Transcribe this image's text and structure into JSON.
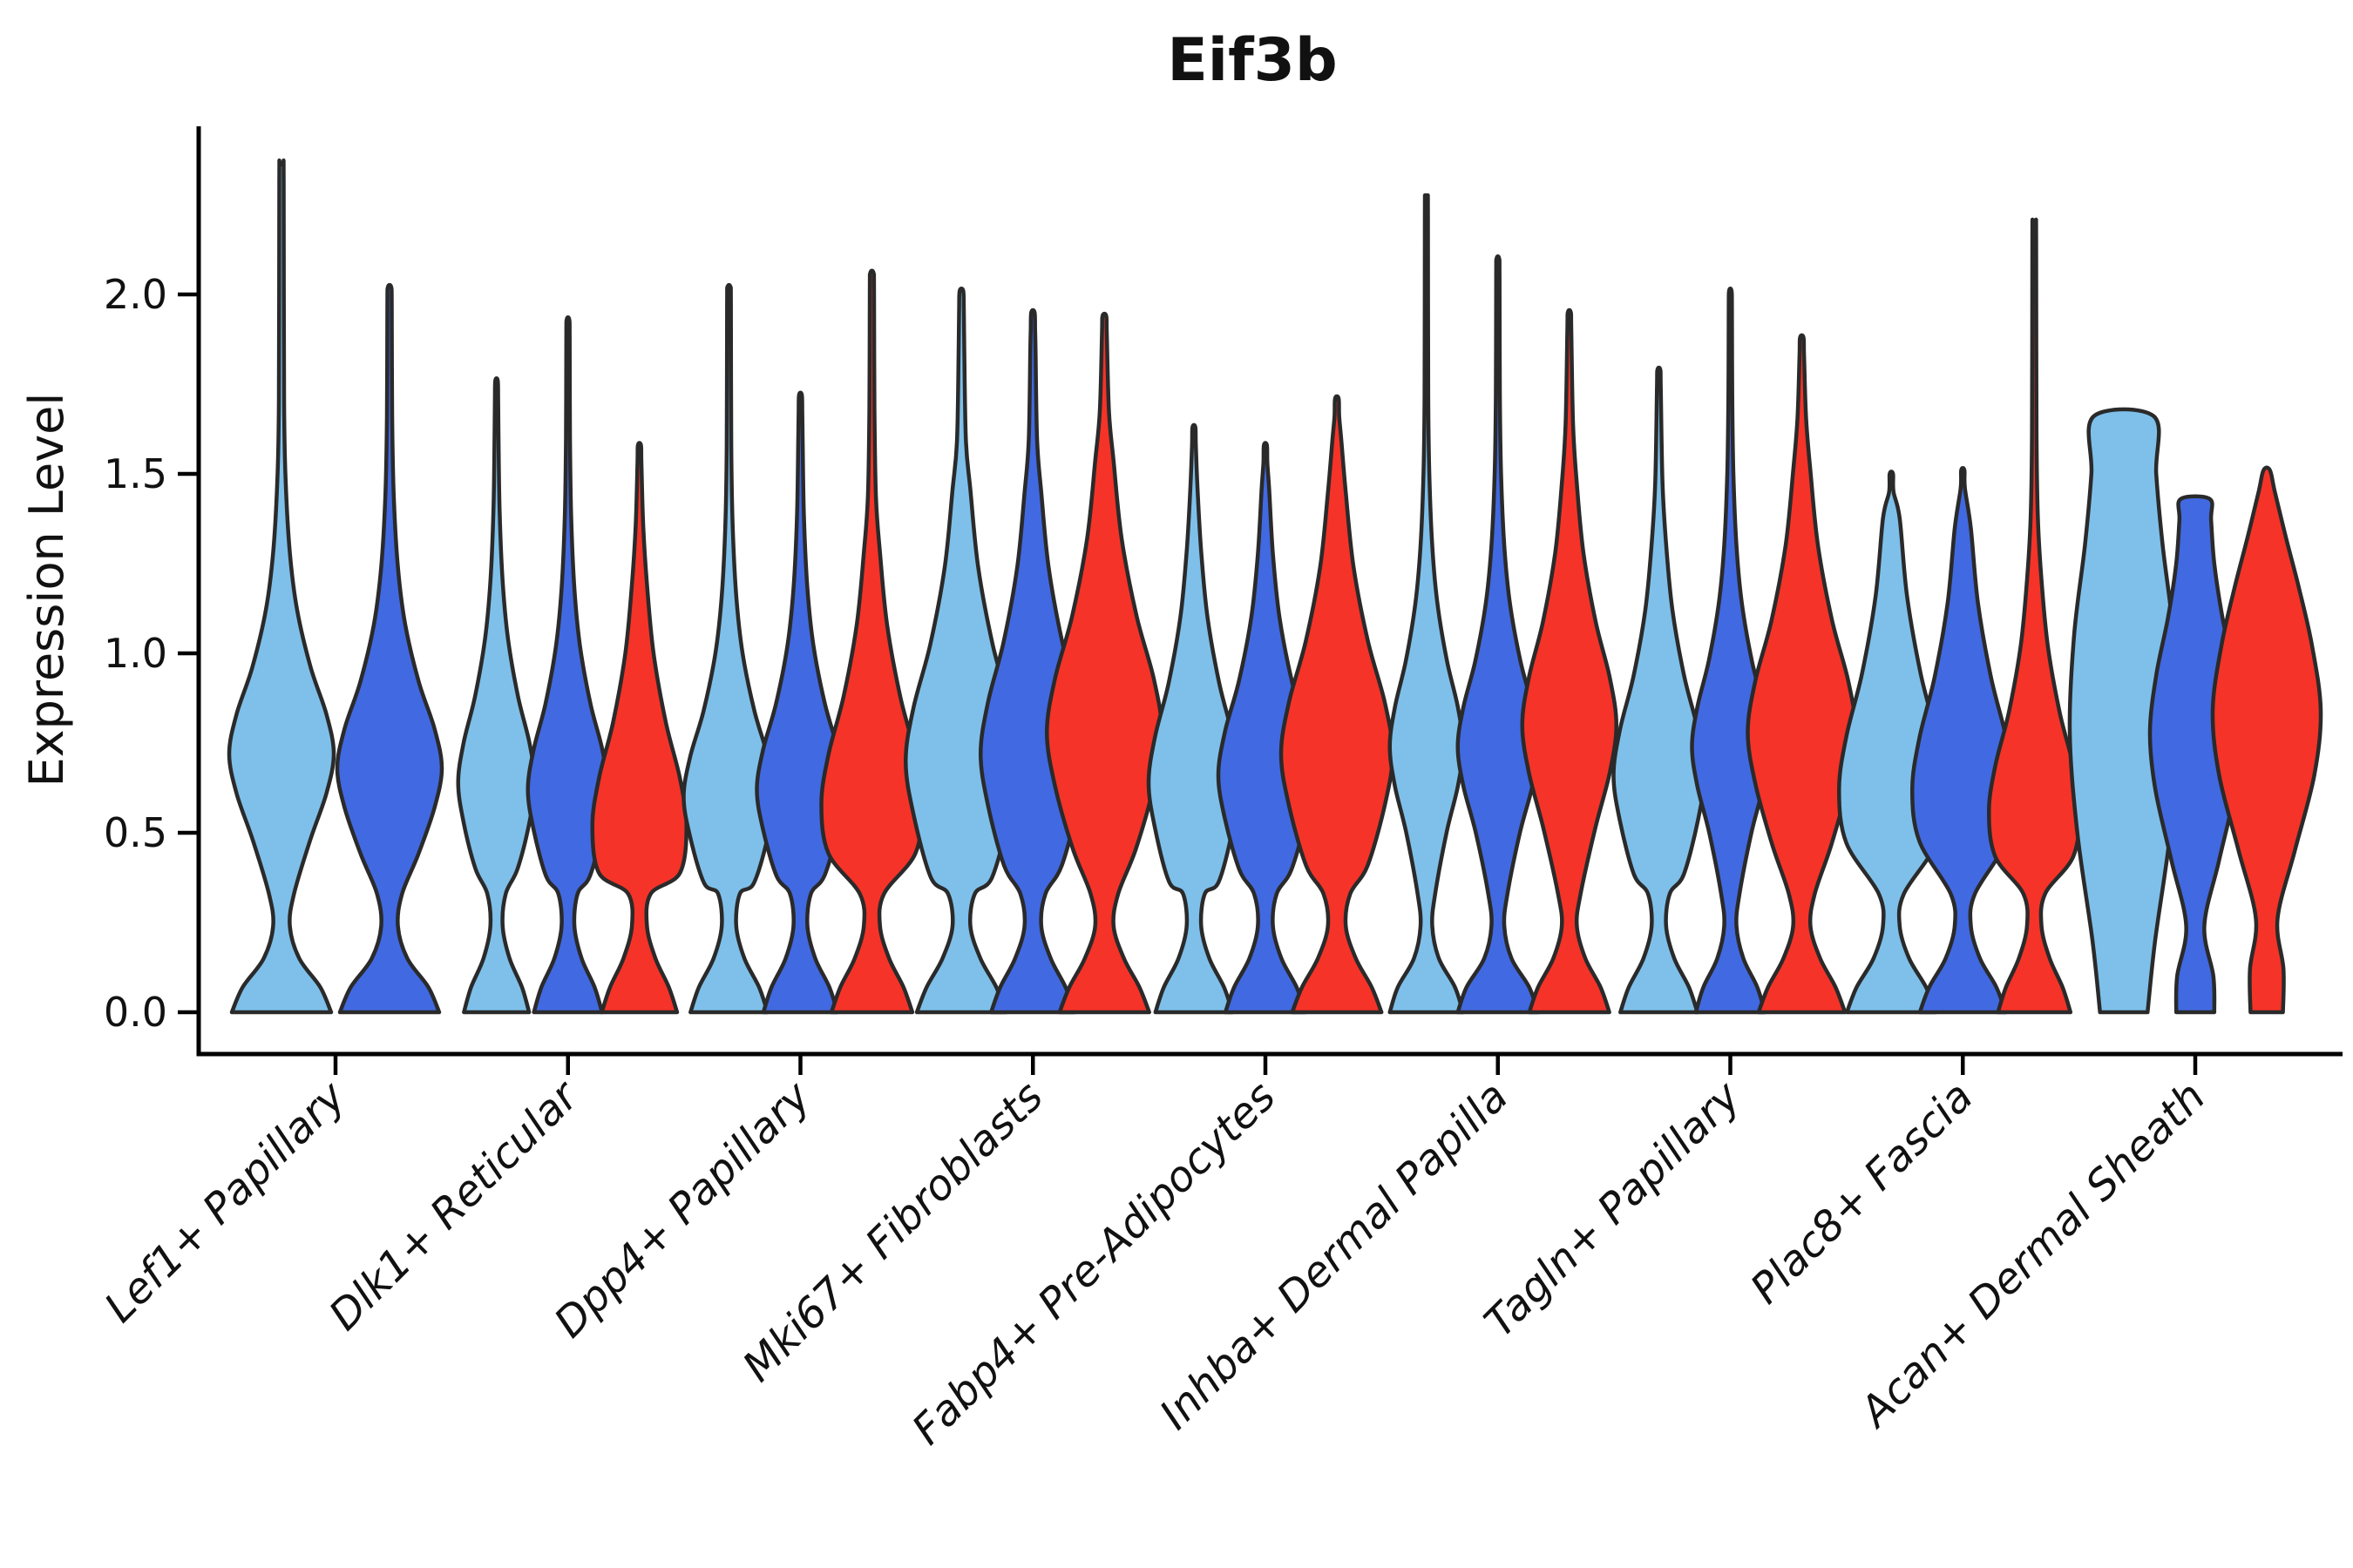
{
  "chart_data": {
    "type": "violin",
    "title": "Eif3b",
    "ylabel": "Expression Level",
    "xlabel": "",
    "ylim": [
      0.0,
      2.47
    ],
    "yticks": [
      0.0,
      0.5,
      1.0,
      1.5,
      2.0
    ],
    "ytick_labels": [
      "0.0",
      "0.5",
      "1.0",
      "1.5",
      "2.0"
    ],
    "grid": false,
    "legend": "none",
    "split_colors": {
      "light_blue": "#7EC0EA",
      "dark_blue": "#4169E1",
      "red": "#F63328"
    },
    "edge_color": "#2a2a2a",
    "groups": [
      {
        "label": "Lef1+ Papillary",
        "violins": [
          {
            "split": "light_blue",
            "max": 2.36,
            "hw": 60,
            "bulge": 0.72,
            "bw": 1.0,
            "base": 0.95
          },
          {
            "split": "dark_blue",
            "max": 2.02,
            "hw": 60,
            "bulge": 0.68,
            "bw": 1.0,
            "base": 0.95
          }
        ]
      },
      {
        "label": "Dlk1+ Reticular",
        "violins": [
          {
            "split": "light_blue",
            "max": 1.76,
            "hw": 44,
            "bulge": 0.64,
            "bw": 1.0,
            "base": 0.85
          },
          {
            "split": "dark_blue",
            "max": 1.93,
            "hw": 46,
            "bulge": 0.62,
            "bw": 1.0,
            "base": 0.85
          },
          {
            "split": "red",
            "max": 1.58,
            "hw": 54,
            "bulge": 0.52,
            "bw": 1.2,
            "base": 0.8
          }
        ]
      },
      {
        "label": "Dpp4+ Papillary",
        "violins": [
          {
            "split": "light_blue",
            "max": 2.02,
            "hw": 52,
            "bulge": 0.6,
            "bw": 1.0,
            "base": 0.85
          },
          {
            "split": "dark_blue",
            "max": 1.72,
            "hw": 50,
            "bulge": 0.62,
            "bw": 1.0,
            "base": 0.85
          },
          {
            "split": "red",
            "max": 2.06,
            "hw": 58,
            "bulge": 0.58,
            "bw": 1.25,
            "base": 0.8
          }
        ]
      },
      {
        "label": "Mki67+ Fibroblasts",
        "violins": [
          {
            "split": "light_blue",
            "max": 2.01,
            "hw": 64,
            "bulge": 0.7,
            "bw": 1.35,
            "base": 0.8
          },
          {
            "split": "dark_blue",
            "max": 1.95,
            "hw": 60,
            "bulge": 0.72,
            "bw": 1.3,
            "base": 0.8
          },
          {
            "split": "red",
            "max": 1.94,
            "hw": 66,
            "bulge": 0.78,
            "bw": 1.35,
            "base": 0.78
          }
        ]
      },
      {
        "label": "Fabp4+ Pre-Adipocytes",
        "violins": [
          {
            "split": "light_blue",
            "max": 1.63,
            "hw": 52,
            "bulge": 0.64,
            "bw": 1.15,
            "base": 0.85
          },
          {
            "split": "dark_blue",
            "max": 1.58,
            "hw": 54,
            "bulge": 0.66,
            "bw": 1.1,
            "base": 0.85
          },
          {
            "split": "red",
            "max": 1.71,
            "hw": 64,
            "bulge": 0.72,
            "bw": 1.3,
            "base": 0.8
          }
        ]
      },
      {
        "label": "Inhba+ Dermal Papilla",
        "violins": [
          {
            "split": "light_blue",
            "max": 2.27,
            "hw": 42,
            "bulge": 0.74,
            "bw": 1.0,
            "base": 1.0
          },
          {
            "split": "dark_blue",
            "max": 2.1,
            "hw": 46,
            "bulge": 0.74,
            "bw": 1.0,
            "base": 1.0
          },
          {
            "split": "red",
            "max": 1.95,
            "hw": 54,
            "bulge": 0.8,
            "bw": 1.2,
            "base": 0.85
          }
        ]
      },
      {
        "label": "Tagln+ Papillary",
        "violins": [
          {
            "split": "light_blue",
            "max": 1.79,
            "hw": 52,
            "bulge": 0.66,
            "bw": 1.15,
            "base": 0.85
          },
          {
            "split": "dark_blue",
            "max": 2.01,
            "hw": 44,
            "bulge": 0.74,
            "bw": 1.0,
            "base": 0.9
          },
          {
            "split": "red",
            "max": 1.88,
            "hw": 62,
            "bulge": 0.78,
            "bw": 1.3,
            "base": 0.8
          }
        ]
      },
      {
        "label": "Plac8+ Fascia",
        "violins": [
          {
            "split": "light_blue",
            "max": 1.5,
            "hw": 60,
            "bulge": 0.62,
            "bw": 1.35,
            "base": 0.85
          },
          {
            "split": "dark_blue",
            "max": 1.51,
            "hw": 58,
            "bulge": 0.62,
            "bw": 1.3,
            "base": 0.85
          },
          {
            "split": "red",
            "max": 2.2,
            "hw": 52,
            "bulge": 0.56,
            "bw": 1.15,
            "base": 0.8
          }
        ]
      },
      {
        "label": "Acan+ Dermal Sheath",
        "violins": [
          {
            "split": "light_blue",
            "max": 1.66,
            "hw": 62,
            "profile": [
              [
                0,
                0.44
              ],
              [
                0.2,
                0.58
              ],
              [
                0.5,
                0.86
              ],
              [
                0.78,
                1.0
              ],
              [
                1.05,
                0.92
              ],
              [
                1.3,
                0.72
              ],
              [
                1.5,
                0.6
              ],
              [
                1.66,
                0.56
              ]
            ]
          },
          {
            "split": "dark_blue",
            "max": 1.43,
            "hw": 52,
            "profile": [
              [
                0,
                0.42
              ],
              [
                0.1,
                0.4
              ],
              [
                0.24,
                0.2
              ],
              [
                0.42,
                0.52
              ],
              [
                0.62,
                0.88
              ],
              [
                0.78,
                1.0
              ],
              [
                0.94,
                0.86
              ],
              [
                1.1,
                0.6
              ],
              [
                1.25,
                0.42
              ],
              [
                1.37,
                0.35
              ],
              [
                1.43,
                0.32
              ]
            ]
          },
          {
            "split": "red",
            "max": 1.51,
            "hw": 62,
            "profile": [
              [
                0,
                0.3
              ],
              [
                0.12,
                0.31
              ],
              [
                0.26,
                0.2
              ],
              [
                0.45,
                0.52
              ],
              [
                0.66,
                0.88
              ],
              [
                0.84,
                1.0
              ],
              [
                1.02,
                0.84
              ],
              [
                1.18,
                0.6
              ],
              [
                1.32,
                0.36
              ],
              [
                1.45,
                0.15
              ],
              [
                1.51,
                0.06
              ]
            ]
          }
        ]
      }
    ]
  }
}
